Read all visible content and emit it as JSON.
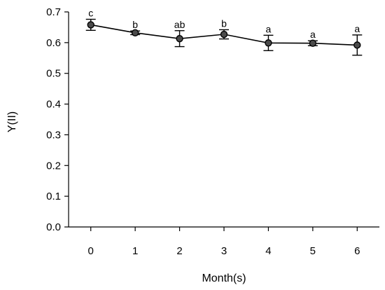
{
  "chart_data": {
    "type": "line",
    "title": "",
    "xlabel": "Month(s)",
    "ylabel": "Y(II)",
    "x": [
      0,
      1,
      2,
      3,
      4,
      5,
      6
    ],
    "xlim": [
      -0.5,
      6.5
    ],
    "ylim": [
      0.0,
      0.7
    ],
    "y_ticks": [
      0.0,
      0.1,
      0.2,
      0.3,
      0.4,
      0.5,
      0.6,
      0.7
    ],
    "y_tick_labels": [
      "0.0",
      "0.1",
      "0.2",
      "0.3",
      "0.4",
      "0.5",
      "0.6",
      "0.7"
    ],
    "x_tick_labels": [
      "0",
      "1",
      "2",
      "3",
      "4",
      "5",
      "6"
    ],
    "grid": false,
    "series": [
      {
        "values": [
          0.658,
          0.632,
          0.613,
          0.627,
          0.599,
          0.598,
          0.592
        ],
        "error": [
          0.018,
          0.006,
          0.026,
          0.015,
          0.025,
          0.008,
          0.033
        ],
        "significance_labels": [
          "c",
          "b",
          "ab",
          "b",
          "a",
          "a",
          "a"
        ]
      }
    ]
  }
}
